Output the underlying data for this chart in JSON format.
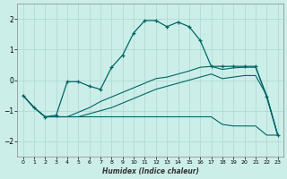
{
  "xlabel": "Humidex (Indice chaleur)",
  "background_color": "#cceee8",
  "grid_color": "#aad8d0",
  "line_color": "#006666",
  "xlim": [
    -0.5,
    23.5
  ],
  "ylim": [
    -2.5,
    2.5
  ],
  "yticks": [
    -2,
    -1,
    0,
    1,
    2
  ],
  "xticks": [
    0,
    1,
    2,
    3,
    4,
    5,
    6,
    7,
    8,
    9,
    10,
    11,
    12,
    13,
    14,
    15,
    16,
    17,
    18,
    19,
    20,
    21,
    22,
    23
  ],
  "line1_x": [
    0,
    1,
    2,
    3,
    4,
    5,
    6,
    7,
    8,
    9,
    10,
    11,
    12,
    13,
    14,
    15,
    16,
    17,
    18,
    19,
    20,
    21,
    22,
    23
  ],
  "line1_y": [
    -0.5,
    -0.9,
    -1.2,
    -1.2,
    -1.2,
    -1.2,
    -1.2,
    -1.2,
    -1.2,
    -1.2,
    -1.2,
    -1.2,
    -1.2,
    -1.2,
    -1.2,
    -1.2,
    -1.2,
    -1.2,
    -1.45,
    -1.5,
    -1.5,
    -1.5,
    -1.8,
    -1.8
  ],
  "line2_x": [
    0,
    1,
    2,
    3,
    4,
    5,
    6,
    7,
    8,
    9,
    10,
    11,
    12,
    13,
    14,
    15,
    16,
    17,
    18,
    19,
    20,
    21,
    22,
    23
  ],
  "line2_y": [
    -0.5,
    -0.9,
    -1.2,
    -1.2,
    -1.2,
    -1.2,
    -1.1,
    -1.0,
    -0.9,
    -0.75,
    -0.6,
    -0.45,
    -0.3,
    -0.2,
    -0.1,
    0.0,
    0.1,
    0.2,
    0.05,
    0.1,
    0.15,
    0.15,
    -0.5,
    -1.8
  ],
  "line3_x": [
    0,
    1,
    2,
    3,
    4,
    5,
    6,
    7,
    8,
    9,
    10,
    11,
    12,
    13,
    14,
    15,
    16,
    17,
    18,
    19,
    20,
    21,
    22,
    23
  ],
  "line3_y": [
    -0.5,
    -0.9,
    -1.2,
    -1.2,
    -1.2,
    -1.05,
    -0.9,
    -0.7,
    -0.55,
    -0.4,
    -0.25,
    -0.1,
    0.05,
    0.1,
    0.2,
    0.3,
    0.42,
    0.45,
    0.35,
    0.4,
    0.42,
    0.42,
    -0.5,
    -1.8
  ],
  "line4_x": [
    0,
    1,
    2,
    3,
    4,
    5,
    6,
    7,
    8,
    9,
    10,
    11,
    12,
    13,
    14,
    15,
    16,
    17,
    18,
    19,
    20,
    21,
    22,
    23
  ],
  "line4_y": [
    -0.5,
    -0.9,
    -1.2,
    -1.15,
    -0.05,
    -0.05,
    -0.2,
    -0.3,
    0.42,
    0.82,
    1.55,
    1.95,
    1.95,
    1.75,
    1.9,
    1.75,
    1.3,
    0.45,
    0.45,
    0.45,
    0.45,
    0.45,
    -0.55,
    -1.8
  ]
}
